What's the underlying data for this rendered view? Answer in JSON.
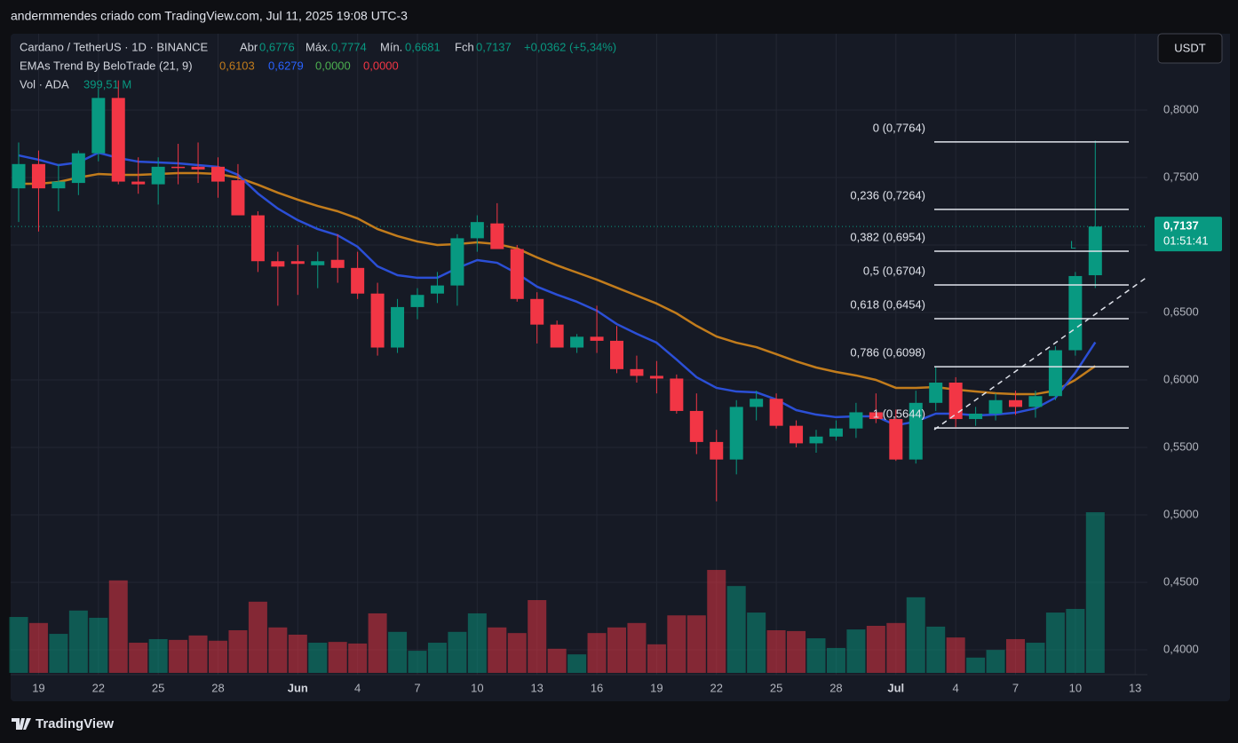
{
  "header": {
    "caption": "andermmendes criado com TradingView.com, Jul 11, 2025 19:08 UTC-3"
  },
  "legend": {
    "symbol": "Cardano / TetherUS · 1D · BINANCE",
    "open_label": "Abr",
    "open_value": "0,6776",
    "high_label": "Máx.",
    "high_value": "0,7774",
    "low_label": "Mín.",
    "low_value": "0,6681",
    "close_label": "Fch",
    "close_value": "0,7137",
    "change": "+0,0362 (+5,34%)",
    "indicator": "EMAs Trend By BeloTrade (21, 9)",
    "indicator_values": [
      "0,6103",
      "0,6279",
      "0,0000",
      "0,0000"
    ],
    "volume_label": "Vol · ADA",
    "volume_value": "399,51 M"
  },
  "currency_button": "USDT",
  "footer": {
    "brand": "TradingView"
  },
  "chart_data": {
    "type": "candlestick",
    "categories": [
      null,
      "19",
      null,
      null,
      "22",
      null,
      null,
      "25",
      null,
      null,
      "28",
      null,
      null,
      null,
      "Jun",
      null,
      null,
      "4",
      null,
      null,
      "7",
      null,
      null,
      "10",
      null,
      null,
      "13",
      null,
      null,
      "16",
      null,
      null,
      "19",
      null,
      null,
      "22",
      null,
      null,
      "25",
      null,
      null,
      "28",
      null,
      null,
      "Jul",
      null,
      null,
      "4",
      null,
      null,
      "7",
      null,
      null,
      "10",
      null,
      null,
      "13"
    ],
    "open": [
      0.742,
      0.76,
      0.742,
      0.746,
      0.768,
      0.809,
      0.747,
      0.745,
      0.758,
      0.758,
      0.758,
      0.748,
      0.722,
      0.688,
      0.688,
      0.685,
      0.689,
      0.683,
      0.664,
      0.624,
      0.654,
      0.664,
      0.67,
      0.705,
      0.716,
      0.697,
      0.66,
      0.641,
      0.624,
      0.632,
      0.629,
      0.608,
      0.603,
      0.601,
      0.577,
      0.554,
      0.541,
      0.58,
      0.586,
      0.566,
      0.553,
      0.558,
      0.564,
      0.576,
      0.571,
      0.541,
      0.583,
      0.598,
      0.571,
      0.575,
      0.585,
      0.58,
      0.588,
      0.622,
      0.6776,
      null,
      null
    ],
    "high": [
      0.776,
      0.77,
      0.76,
      0.77,
      0.816,
      0.822,
      0.765,
      0.765,
      0.775,
      0.776,
      0.765,
      0.76,
      0.725,
      0.695,
      0.7,
      0.695,
      0.708,
      0.695,
      0.672,
      0.66,
      0.668,
      0.68,
      0.708,
      0.722,
      0.731,
      0.7,
      0.665,
      0.644,
      0.634,
      0.655,
      0.64,
      0.618,
      0.614,
      0.604,
      0.59,
      0.563,
      0.585,
      0.592,
      0.59,
      0.57,
      0.563,
      0.57,
      0.583,
      0.59,
      0.578,
      0.592,
      0.61,
      0.602,
      0.58,
      0.59,
      0.592,
      0.592,
      0.625,
      0.68,
      0.7774,
      null,
      null
    ],
    "low": [
      0.717,
      0.71,
      0.725,
      0.737,
      0.762,
      0.745,
      0.738,
      0.73,
      0.745,
      0.746,
      0.735,
      0.725,
      0.68,
      0.655,
      0.663,
      0.668,
      0.672,
      0.66,
      0.618,
      0.62,
      0.645,
      0.657,
      0.655,
      0.695,
      0.698,
      0.658,
      0.627,
      0.625,
      0.62,
      0.62,
      0.605,
      0.598,
      0.59,
      0.575,
      0.545,
      0.51,
      0.53,
      0.57,
      0.564,
      0.55,
      0.546,
      0.555,
      0.557,
      0.568,
      0.54,
      0.538,
      0.577,
      0.565,
      0.566,
      0.57,
      0.574,
      0.572,
      0.585,
      0.618,
      0.6681,
      null,
      null
    ],
    "close": [
      0.76,
      0.742,
      0.747,
      0.768,
      0.809,
      0.747,
      0.745,
      0.758,
      0.757,
      0.756,
      0.747,
      0.722,
      0.688,
      0.684,
      0.686,
      0.688,
      0.683,
      0.664,
      0.624,
      0.654,
      0.663,
      0.67,
      0.705,
      0.717,
      0.697,
      0.66,
      0.641,
      0.624,
      0.632,
      0.629,
      0.608,
      0.603,
      0.601,
      0.577,
      0.554,
      0.541,
      0.58,
      0.586,
      0.566,
      0.553,
      0.558,
      0.564,
      0.576,
      0.571,
      0.541,
      0.583,
      0.598,
      0.571,
      0.575,
      0.585,
      0.58,
      0.588,
      0.622,
      0.677,
      0.7137,
      null,
      null
    ],
    "volume": [
      139,
      124,
      97,
      155,
      137,
      230,
      75,
      84,
      82,
      93,
      80,
      106,
      177,
      113,
      95,
      75,
      77,
      73,
      148,
      102,
      55,
      75,
      102,
      148,
      113,
      99,
      181,
      60,
      46,
      99,
      113,
      124,
      71,
      143,
      143,
      256,
      216,
      150,
      106,
      104,
      86,
      62,
      108,
      117,
      124,
      188,
      115,
      88,
      38,
      57,
      84,
      75,
      150,
      159,
      399.51,
      null,
      null
    ],
    "up_color": "#089981",
    "down_color": "#f23645",
    "volume_ylim": [
      0,
      1000
    ],
    "ema": [
      {
        "color": "#c27c1c",
        "values": [
          0.7454,
          0.7454,
          0.7467,
          0.75,
          0.7526,
          0.752,
          0.752,
          0.7526,
          0.7533,
          0.7533,
          0.7526,
          0.75,
          0.7447,
          0.7388,
          0.7336,
          0.7289,
          0.725,
          0.7197,
          0.7118,
          0.7066,
          0.7026,
          0.7,
          0.7007,
          0.702,
          0.7007,
          0.6974,
          0.6908,
          0.6849,
          0.6796,
          0.6743,
          0.6684,
          0.6625,
          0.6566,
          0.6493,
          0.6401,
          0.6322,
          0.6276,
          0.6243,
          0.6191,
          0.6138,
          0.6092,
          0.6059,
          0.6033,
          0.6,
          0.5941,
          0.5941,
          0.5947,
          0.5928,
          0.5914,
          0.5901,
          0.5895,
          0.5895,
          0.5921,
          0.6,
          0.6103,
          null,
          null
        ]
      },
      {
        "color": "#2b4fd6",
        "values": [
          0.7664,
          0.7632,
          0.7592,
          0.7612,
          0.7684,
          0.7645,
          0.7618,
          0.7612,
          0.7605,
          0.7592,
          0.7579,
          0.752,
          0.7382,
          0.727,
          0.7184,
          0.7118,
          0.7072,
          0.6987,
          0.6842,
          0.6776,
          0.6757,
          0.6757,
          0.6829,
          0.6888,
          0.6868,
          0.6789,
          0.6691,
          0.6632,
          0.6579,
          0.6513,
          0.6414,
          0.6342,
          0.6276,
          0.6151,
          0.602,
          0.5941,
          0.5914,
          0.5908,
          0.5855,
          0.5776,
          0.5743,
          0.5724,
          0.573,
          0.573,
          0.5664,
          0.5691,
          0.575,
          0.575,
          0.5737,
          0.5743,
          0.5757,
          0.5789,
          0.5868,
          0.6053,
          0.6279,
          null,
          null
        ]
      }
    ],
    "indicator_value_colors": [
      "#c27c1c",
      "#2962ff",
      "#4caf50",
      "#f23645"
    ],
    "ylim": [
      0.3618,
      0.8566
    ],
    "yticks": [
      {
        "value": 0.4,
        "label": "0,4000"
      },
      {
        "value": 0.45,
        "label": "0,4500"
      },
      {
        "value": 0.5,
        "label": "0,5000"
      },
      {
        "value": 0.55,
        "label": "0,5500"
      },
      {
        "value": 0.6,
        "label": "0,6000"
      },
      {
        "value": 0.65,
        "label": "0,6500"
      },
      {
        "value": 0.7,
        "label": "0,7000"
      },
      {
        "value": 0.75,
        "label": "0,7500"
      },
      {
        "value": 0.8,
        "label": "0,8000"
      }
    ],
    "grid": true,
    "price_marker": {
      "value": 0.7137,
      "label": "0,7137",
      "countdown": "01:51:41"
    },
    "fibonacci": [
      {
        "value": 0.7764,
        "label": "0 (0,7764)"
      },
      {
        "value": 0.7264,
        "label": "0,236 (0,7264)"
      },
      {
        "value": 0.6954,
        "label": "0,382 (0,6954)"
      },
      {
        "value": 0.6704,
        "label": "0,5 (0,6704)"
      },
      {
        "value": 0.6454,
        "label": "0,618 (0,6454)"
      },
      {
        "value": 0.6098,
        "label": "0,786 (0,6098)"
      },
      {
        "value": 0.5644,
        "label": "1 (0,5644)"
      }
    ],
    "signal": "L"
  }
}
